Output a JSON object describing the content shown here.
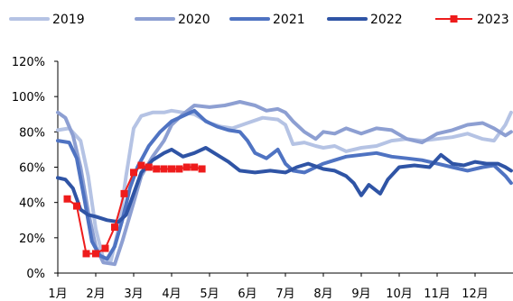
{
  "chart_data": {
    "type": "line",
    "title": "",
    "xlabel": "",
    "ylabel": "",
    "ylim": [
      0,
      1.2
    ],
    "xlim": [
      1,
      13
    ],
    "legend_position": "top",
    "grid": false,
    "x_ticks": [
      {
        "value": 1,
        "label": "1月"
      },
      {
        "value": 2,
        "label": "2月"
      },
      {
        "value": 3,
        "label": "3月"
      },
      {
        "value": 4,
        "label": "4月"
      },
      {
        "value": 5,
        "label": "5月"
      },
      {
        "value": 6,
        "label": "6月"
      },
      {
        "value": 7,
        "label": "7月"
      },
      {
        "value": 8,
        "label": "8月"
      },
      {
        "value": 9,
        "label": "9月"
      },
      {
        "value": 10,
        "label": "10月"
      },
      {
        "value": 11,
        "label": "11月"
      },
      {
        "value": 12,
        "label": "12月"
      }
    ],
    "y_ticks": [
      {
        "value": 0,
        "label": "0%"
      },
      {
        "value": 0.2,
        "label": "20%"
      },
      {
        "value": 0.4,
        "label": "40%"
      },
      {
        "value": 0.6,
        "label": "60%"
      },
      {
        "value": 0.8,
        "label": "80%"
      },
      {
        "value": 1.0,
        "label": "100%"
      },
      {
        "value": 1.2,
        "label": "120%"
      }
    ],
    "series": [
      {
        "name": "2019",
        "color": "#b5c3e4",
        "marker": "none",
        "points": [
          [
            1.0,
            0.81
          ],
          [
            1.3,
            0.82
          ],
          [
            1.6,
            0.75
          ],
          [
            1.8,
            0.55
          ],
          [
            2.0,
            0.25
          ],
          [
            2.2,
            0.08
          ],
          [
            2.4,
            0.07
          ],
          [
            2.6,
            0.25
          ],
          [
            2.8,
            0.55
          ],
          [
            3.0,
            0.82
          ],
          [
            3.2,
            0.89
          ],
          [
            3.5,
            0.91
          ],
          [
            3.8,
            0.91
          ],
          [
            4.0,
            0.92
          ],
          [
            4.3,
            0.91
          ],
          [
            4.6,
            0.9
          ],
          [
            5.0,
            0.85
          ],
          [
            5.3,
            0.83
          ],
          [
            5.6,
            0.82
          ],
          [
            6.0,
            0.85
          ],
          [
            6.4,
            0.88
          ],
          [
            6.8,
            0.87
          ],
          [
            7.0,
            0.84
          ],
          [
            7.2,
            0.73
          ],
          [
            7.5,
            0.74
          ],
          [
            7.8,
            0.72
          ],
          [
            8.0,
            0.71
          ],
          [
            8.3,
            0.72
          ],
          [
            8.6,
            0.69
          ],
          [
            9.0,
            0.71
          ],
          [
            9.4,
            0.72
          ],
          [
            9.8,
            0.75
          ],
          [
            10.2,
            0.76
          ],
          [
            10.6,
            0.75
          ],
          [
            11.0,
            0.76
          ],
          [
            11.4,
            0.77
          ],
          [
            11.8,
            0.79
          ],
          [
            12.2,
            0.76
          ],
          [
            12.5,
            0.75
          ],
          [
            12.8,
            0.84
          ],
          [
            12.95,
            0.91
          ]
        ]
      },
      {
        "name": "2020",
        "color": "#8d9fd2",
        "marker": "none",
        "points": [
          [
            1.0,
            0.91
          ],
          [
            1.2,
            0.88
          ],
          [
            1.4,
            0.78
          ],
          [
            1.6,
            0.6
          ],
          [
            1.8,
            0.35
          ],
          [
            2.0,
            0.15
          ],
          [
            2.2,
            0.06
          ],
          [
            2.5,
            0.05
          ],
          [
            2.7,
            0.18
          ],
          [
            3.0,
            0.4
          ],
          [
            3.2,
            0.55
          ],
          [
            3.5,
            0.66
          ],
          [
            3.8,
            0.75
          ],
          [
            4.0,
            0.84
          ],
          [
            4.3,
            0.9
          ],
          [
            4.6,
            0.95
          ],
          [
            5.0,
            0.94
          ],
          [
            5.4,
            0.95
          ],
          [
            5.8,
            0.97
          ],
          [
            6.2,
            0.95
          ],
          [
            6.5,
            0.92
          ],
          [
            6.8,
            0.93
          ],
          [
            7.0,
            0.91
          ],
          [
            7.2,
            0.86
          ],
          [
            7.5,
            0.8
          ],
          [
            7.8,
            0.76
          ],
          [
            8.0,
            0.8
          ],
          [
            8.3,
            0.79
          ],
          [
            8.6,
            0.82
          ],
          [
            9.0,
            0.79
          ],
          [
            9.4,
            0.82
          ],
          [
            9.8,
            0.81
          ],
          [
            10.2,
            0.76
          ],
          [
            10.6,
            0.74
          ],
          [
            11.0,
            0.79
          ],
          [
            11.4,
            0.81
          ],
          [
            11.8,
            0.84
          ],
          [
            12.2,
            0.85
          ],
          [
            12.5,
            0.82
          ],
          [
            12.8,
            0.78
          ],
          [
            12.95,
            0.8
          ]
        ]
      },
      {
        "name": "2021",
        "color": "#4f73c2",
        "marker": "none",
        "points": [
          [
            1.0,
            0.75
          ],
          [
            1.3,
            0.74
          ],
          [
            1.5,
            0.65
          ],
          [
            1.7,
            0.42
          ],
          [
            1.9,
            0.18
          ],
          [
            2.1,
            0.1
          ],
          [
            2.3,
            0.08
          ],
          [
            2.5,
            0.15
          ],
          [
            2.7,
            0.3
          ],
          [
            2.9,
            0.48
          ],
          [
            3.1,
            0.6
          ],
          [
            3.4,
            0.72
          ],
          [
            3.7,
            0.8
          ],
          [
            4.0,
            0.86
          ],
          [
            4.3,
            0.89
          ],
          [
            4.6,
            0.92
          ],
          [
            4.9,
            0.86
          ],
          [
            5.2,
            0.83
          ],
          [
            5.5,
            0.81
          ],
          [
            5.8,
            0.8
          ],
          [
            6.0,
            0.75
          ],
          [
            6.2,
            0.68
          ],
          [
            6.5,
            0.65
          ],
          [
            6.8,
            0.7
          ],
          [
            7.0,
            0.62
          ],
          [
            7.2,
            0.58
          ],
          [
            7.5,
            0.57
          ],
          [
            7.8,
            0.6
          ],
          [
            8.0,
            0.62
          ],
          [
            8.3,
            0.64
          ],
          [
            8.6,
            0.66
          ],
          [
            9.0,
            0.67
          ],
          [
            9.4,
            0.68
          ],
          [
            9.8,
            0.66
          ],
          [
            10.2,
            0.65
          ],
          [
            10.6,
            0.64
          ],
          [
            11.0,
            0.62
          ],
          [
            11.4,
            0.6
          ],
          [
            11.8,
            0.58
          ],
          [
            12.2,
            0.6
          ],
          [
            12.5,
            0.61
          ],
          [
            12.8,
            0.55
          ],
          [
            12.95,
            0.51
          ]
        ]
      },
      {
        "name": "2022",
        "color": "#2f54a5",
        "marker": "none",
        "points": [
          [
            1.0,
            0.54
          ],
          [
            1.2,
            0.53
          ],
          [
            1.4,
            0.48
          ],
          [
            1.6,
            0.36
          ],
          [
            1.8,
            0.33
          ],
          [
            2.0,
            0.32
          ],
          [
            2.3,
            0.3
          ],
          [
            2.6,
            0.29
          ],
          [
            2.8,
            0.33
          ],
          [
            3.0,
            0.45
          ],
          [
            3.2,
            0.57
          ],
          [
            3.5,
            0.64
          ],
          [
            3.8,
            0.68
          ],
          [
            4.0,
            0.7
          ],
          [
            4.3,
            0.66
          ],
          [
            4.6,
            0.68
          ],
          [
            4.9,
            0.71
          ],
          [
            5.2,
            0.67
          ],
          [
            5.5,
            0.63
          ],
          [
            5.8,
            0.58
          ],
          [
            6.2,
            0.57
          ],
          [
            6.6,
            0.58
          ],
          [
            7.0,
            0.57
          ],
          [
            7.3,
            0.6
          ],
          [
            7.6,
            0.62
          ],
          [
            8.0,
            0.59
          ],
          [
            8.3,
            0.58
          ],
          [
            8.6,
            0.55
          ],
          [
            8.8,
            0.51
          ],
          [
            9.0,
            0.44
          ],
          [
            9.2,
            0.5
          ],
          [
            9.5,
            0.45
          ],
          [
            9.7,
            0.53
          ],
          [
            10.0,
            0.6
          ],
          [
            10.4,
            0.61
          ],
          [
            10.8,
            0.6
          ],
          [
            11.1,
            0.67
          ],
          [
            11.4,
            0.62
          ],
          [
            11.7,
            0.61
          ],
          [
            12.0,
            0.63
          ],
          [
            12.3,
            0.62
          ],
          [
            12.6,
            0.62
          ],
          [
            12.8,
            0.6
          ],
          [
            12.95,
            0.58
          ]
        ]
      },
      {
        "name": "2023",
        "color": "#ee1c1c",
        "marker": "square",
        "points": [
          [
            1.25,
            0.42
          ],
          [
            1.5,
            0.38
          ],
          [
            1.75,
            0.11
          ],
          [
            2.0,
            0.11
          ],
          [
            2.25,
            0.14
          ],
          [
            2.5,
            0.26
          ],
          [
            2.75,
            0.45
          ],
          [
            3.0,
            0.57
          ],
          [
            3.2,
            0.61
          ],
          [
            3.4,
            0.6
          ],
          [
            3.6,
            0.59
          ],
          [
            3.8,
            0.59
          ],
          [
            4.0,
            0.59
          ],
          [
            4.2,
            0.59
          ],
          [
            4.4,
            0.6
          ],
          [
            4.6,
            0.6
          ],
          [
            4.8,
            0.59
          ]
        ]
      }
    ]
  }
}
